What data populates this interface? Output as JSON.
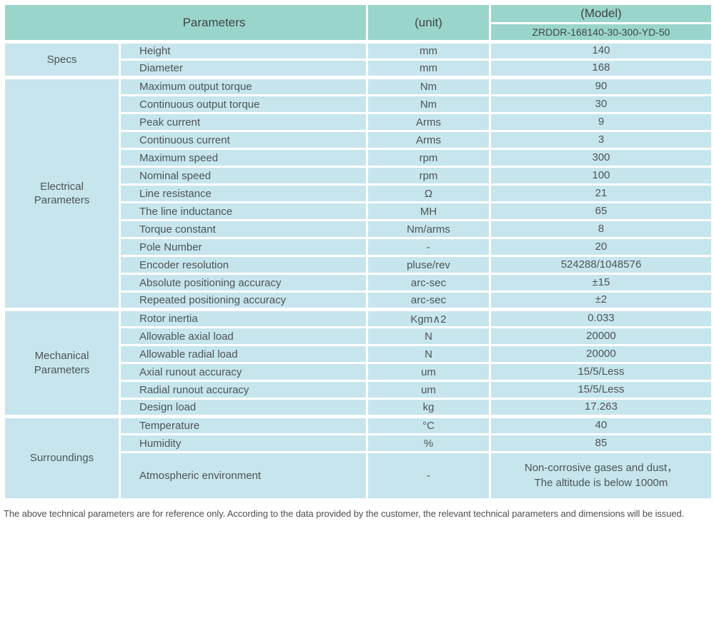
{
  "colors": {
    "header_bg": "#9ad5cb",
    "row_bg": "#c7e5ed",
    "text": "#4d5557"
  },
  "table": {
    "header": {
      "parameters_label": "Parameters",
      "unit_label": "(unit)",
      "model_label": "(Model)",
      "model_value": "ZRDDR-168140-30-300-YD-50"
    },
    "sections": [
      {
        "name": "Specs",
        "rows": [
          {
            "param": "Height",
            "unit": "mm",
            "value": "140"
          },
          {
            "param": "Diameter",
            "unit": "mm",
            "value": "168"
          }
        ]
      },
      {
        "name": "Electrical Parameters",
        "rows": [
          {
            "param": "Maximum output torque",
            "unit": "Nm",
            "value": "90"
          },
          {
            "param": "Continuous output torque",
            "unit": "Nm",
            "value": "30"
          },
          {
            "param": "Peak current",
            "unit": "Arms",
            "value": "9"
          },
          {
            "param": "Continuous current",
            "unit": "Arms",
            "value": "3"
          },
          {
            "param": "Maximum speed",
            "unit": "rpm",
            "value": "300"
          },
          {
            "param": "Nominal speed",
            "unit": "rpm",
            "value": "100"
          },
          {
            "param": "Line resistance",
            "unit": "Ω",
            "value": "21"
          },
          {
            "param": "The line inductance",
            "unit": "MH",
            "value": "65"
          },
          {
            "param": "Torque constant",
            "unit": "Nm/arms",
            "value": "8"
          },
          {
            "param": "Pole Number",
            "unit": "-",
            "value": "20"
          },
          {
            "param": "Encoder resolution",
            "unit": "pluse/rev",
            "value": "524288/1048576"
          },
          {
            "param": "Absolute positioning accuracy",
            "unit": "arc-sec",
            "value": "±15"
          },
          {
            "param": "Repeated positioning accuracy",
            "unit": "arc-sec",
            "value": "±2"
          }
        ]
      },
      {
        "name": "Mechanical Parameters",
        "rows": [
          {
            "param": "Rotor inertia",
            "unit": "Kgm∧2",
            "value": "0.033"
          },
          {
            "param": "Allowable axial load",
            "unit": "N",
            "value": "20000"
          },
          {
            "param": "Allowable radial load",
            "unit": "N",
            "value": "20000"
          },
          {
            "param": "Axial runout accuracy",
            "unit": "um",
            "value": "15/5/Less"
          },
          {
            "param": "Radial runout accuracy",
            "unit": "um",
            "value": "15/5/Less"
          },
          {
            "param": "Design load",
            "unit": "kg",
            "value": "17.263"
          }
        ]
      },
      {
        "name": "Surroundings",
        "rows": [
          {
            "param": "Temperature",
            "unit": "°C",
            "value": "40"
          },
          {
            "param": "Humidity",
            "unit": "%",
            "value": "85"
          },
          {
            "param": "Atmospheric environment",
            "unit": "-",
            "value": "Non-corrosive gases and dust，\nThe altitude is below 1000m"
          }
        ]
      }
    ]
  },
  "footer": {
    "note": "The above technical parameters are for reference only. According to the data provided by the customer, the relevant technical parameters and dimensions will be issued."
  }
}
